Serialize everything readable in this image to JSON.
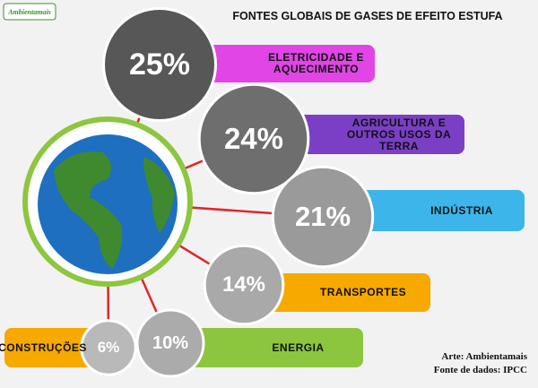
{
  "logo": "Ambientamais",
  "chart_data": {
    "type": "bubble",
    "title": "FONTES GLOBAIS DE GASES DE  EFEITO ESTUFA",
    "categories": [
      "ELETRICIDADE E AQUECIMENTO",
      "AGRICULTURA E OUTROS USOS DA TERRA",
      "INDÚSTRIA",
      "TRANSPORTES",
      "ENERGIA",
      "CONSTRUÇÕES"
    ],
    "values": [
      25,
      24,
      21,
      14,
      10,
      6
    ],
    "value_labels": [
      "25%",
      "24%",
      "21%",
      "14%",
      "10%",
      "6%"
    ],
    "bubble_colors": [
      "#575757",
      "#6e6e6e",
      "#9a9a9a",
      "#a9a9a9",
      "#ababab",
      "#b9b9b9"
    ],
    "bar_colors": [
      "#e145e6",
      "#7b3fc6",
      "#3cb6ea",
      "#f7a900",
      "#8cc63f",
      "#f7a900"
    ]
  },
  "credits": [
    "Arte: Ambientamais",
    "Fonte de dados: IPCC"
  ]
}
